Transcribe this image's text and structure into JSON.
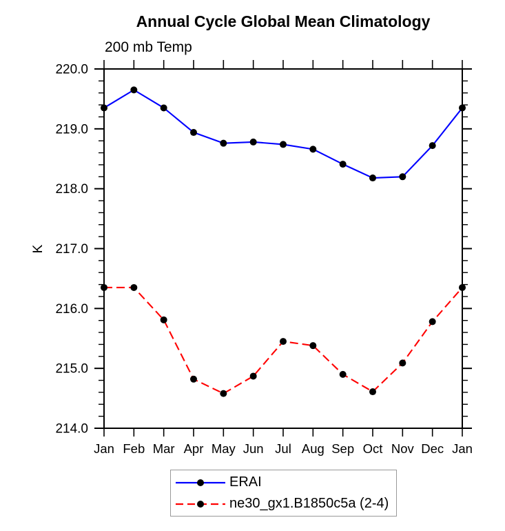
{
  "title": "Annual Cycle Global Mean Climatology",
  "chart_data": {
    "type": "line",
    "title": "Annual Cycle Global Mean Climatology",
    "subtitle_left": "200 mb Temp",
    "ylabel": "K",
    "xlabel": "",
    "ylim": [
      214.0,
      220.0
    ],
    "ytick_step": 1.0,
    "yminor_step": 0.2,
    "ytick_labels": [
      "220.0",
      "219.0",
      "218.0",
      "217.0",
      "216.0",
      "215.0",
      "214.0"
    ],
    "x_categories": [
      "Jan",
      "Feb",
      "Mar",
      "Apr",
      "May",
      "Jun",
      "Jul",
      "Aug",
      "Sep",
      "Oct",
      "Nov",
      "Dec",
      "Jan"
    ],
    "grid": false,
    "legend_position": "bottom-center",
    "marker": "filled-circle",
    "marker_color": "#000000",
    "frame_color": "#000000",
    "series": [
      {
        "name": "ERAI",
        "color": "#0000ff",
        "line_style": "solid",
        "values": [
          219.35,
          219.65,
          219.35,
          218.94,
          218.76,
          218.78,
          218.74,
          218.66,
          218.41,
          218.18,
          218.2,
          218.72,
          219.35
        ]
      },
      {
        "name": "ne30_gx1.B1850c5a (2-4)",
        "color": "#ff0000",
        "line_style": "dashed",
        "values": [
          216.35,
          216.35,
          215.81,
          214.82,
          214.58,
          214.87,
          215.45,
          215.38,
          214.9,
          214.61,
          215.09,
          215.78,
          216.35
        ]
      }
    ]
  }
}
